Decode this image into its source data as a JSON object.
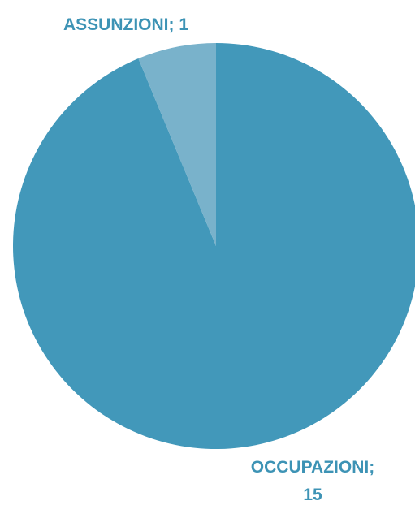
{
  "chart_data": {
    "type": "pie",
    "slices": [
      {
        "label": "OCCUPAZIONI",
        "value": 15,
        "color": "#4298BA",
        "data_label": [
          "OCCUPAZIONI;",
          "15"
        ]
      },
      {
        "label": "ASSUNZIONI",
        "value": 1,
        "color": "#79B2CB",
        "data_label": [
          "ASSUNZIONI; 1"
        ]
      }
    ],
    "label_color": "#3D93B5"
  }
}
